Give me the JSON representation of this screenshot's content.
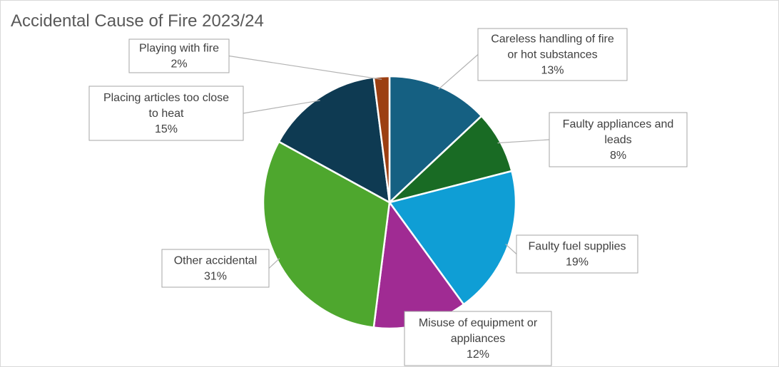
{
  "chart_data": {
    "type": "pie",
    "title": "Accidental Cause of Fire 2023/24",
    "start_angle_deg": 0,
    "direction": "clockwise",
    "slices": [
      {
        "label": "Careless handling of fire or hot substances",
        "value": 13,
        "display": "13%",
        "color": "#156082"
      },
      {
        "label": "Faulty appliances and leads",
        "value": 8,
        "display": "8%",
        "color": "#196b24"
      },
      {
        "label": "Faulty fuel supplies",
        "value": 19,
        "display": "19%",
        "color": "#0f9ed5"
      },
      {
        "label": "Misuse of equipment or appliances",
        "value": 12,
        "display": "12%",
        "color": "#a02b93"
      },
      {
        "label": "Other accidental",
        "value": 31,
        "display": "31%",
        "color": "#4ea72e"
      },
      {
        "label": "Placing articles too close to heat",
        "value": 15,
        "display": "15%",
        "color": "#0e3a52"
      },
      {
        "label": "Playing with fire",
        "value": 2,
        "display": "2%",
        "color": "#9c3f12"
      }
    ],
    "data_labels": [
      {
        "lines": [
          "Careless handling of fire",
          "or hot substances",
          "13%"
        ]
      },
      {
        "lines": [
          "Faulty appliances and",
          "leads",
          "8%"
        ]
      },
      {
        "lines": [
          "Faulty fuel supplies",
          "19%"
        ]
      },
      {
        "lines": [
          "Misuse of equipment or",
          "appliances",
          "12%"
        ]
      },
      {
        "lines": [
          "Other accidental",
          "31%"
        ]
      },
      {
        "lines": [
          "Placing articles too close",
          "to heat",
          "15%"
        ]
      },
      {
        "lines": [
          "Playing with fire",
          "2%"
        ]
      }
    ],
    "legend": "none"
  }
}
